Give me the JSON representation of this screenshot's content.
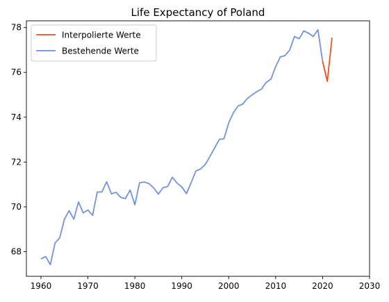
{
  "chart_data": {
    "type": "line",
    "title": "Life Expectancy of Poland",
    "xlabel": "",
    "ylabel": "",
    "xlim": [
      1956.9,
      2030
    ],
    "ylim": [
      66.9,
      78.3
    ],
    "xticks": [
      1960,
      1970,
      1980,
      1990,
      2000,
      2010,
      2020,
      2030
    ],
    "yticks": [
      68,
      70,
      72,
      74,
      76,
      78
    ],
    "grid": false,
    "legend_position": "top-left",
    "series": [
      {
        "name": "Interpolierte Werte",
        "color": "#f4511e",
        "x": [
          2020,
          2021,
          2022
        ],
        "y": [
          76.5,
          75.6,
          77.55
        ]
      },
      {
        "name": "Bestehende Werte",
        "color": "#6f93dd",
        "x": [
          1960,
          1961,
          1962,
          1963,
          1964,
          1965,
          1966,
          1967,
          1968,
          1969,
          1970,
          1971,
          1972,
          1973,
          1974,
          1975,
          1976,
          1977,
          1978,
          1979,
          1980,
          1981,
          1982,
          1983,
          1984,
          1985,
          1986,
          1987,
          1988,
          1989,
          1990,
          1991,
          1992,
          1993,
          1994,
          1995,
          1996,
          1997,
          1998,
          1999,
          2000,
          2001,
          2002,
          2003,
          2004,
          2005,
          2006,
          2007,
          2008,
          2009,
          2010,
          2011,
          2012,
          2013,
          2014,
          2015,
          2016,
          2017,
          2018,
          2019,
          2020,
          2021
        ],
        "y": [
          67.68,
          67.78,
          67.42,
          68.38,
          68.62,
          69.45,
          69.83,
          69.45,
          70.22,
          69.73,
          69.86,
          69.62,
          70.66,
          70.67,
          71.12,
          70.58,
          70.65,
          70.42,
          70.37,
          70.75,
          70.09,
          71.07,
          71.11,
          71.04,
          70.85,
          70.57,
          70.85,
          70.91,
          71.32,
          71.06,
          70.89,
          70.59,
          71.08,
          71.6,
          71.69,
          71.89,
          72.25,
          72.63,
          73.01,
          73.04,
          73.75,
          74.2,
          74.5,
          74.59,
          74.84,
          75.0,
          75.14,
          75.26,
          75.56,
          75.7,
          76.26,
          76.69,
          76.75,
          77.0,
          77.6,
          77.5,
          77.85,
          77.75,
          77.6,
          77.9,
          76.5,
          75.6
        ]
      }
    ]
  }
}
